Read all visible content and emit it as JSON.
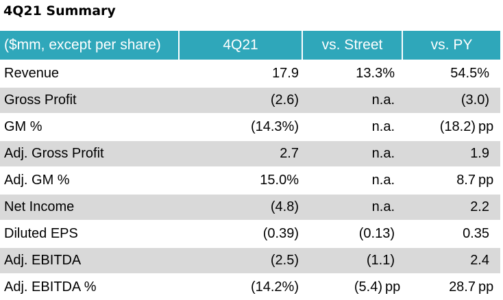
{
  "title": "4Q21 Summary",
  "header": {
    "label": "($mm, except per share)",
    "col1": "4Q21",
    "col2": "vs. Street",
    "col3": "vs. PY"
  },
  "rows": [
    {
      "label": "Revenue",
      "c1": "17.9",
      "c2": "13.3%",
      "c2_unit": "",
      "c3": "54.5%",
      "c3_unit": ""
    },
    {
      "label": "Gross Profit",
      "c1": "(2.6)",
      "c2": "n.a.",
      "c2_unit": "",
      "c3": "(3.0)",
      "c3_unit": ""
    },
    {
      "label": "GM %",
      "c1": "(14.3%)",
      "c2": "n.a.",
      "c2_unit": "",
      "c3": "(18.2)",
      "c3_unit": "pp"
    },
    {
      "label": "Adj. Gross Profit",
      "c1": "2.7",
      "c2": "n.a.",
      "c2_unit": "",
      "c3": "1.9",
      "c3_unit": ""
    },
    {
      "label": "Adj. GM %",
      "c1": "15.0%",
      "c2": "n.a.",
      "c2_unit": "",
      "c3": "8.7",
      "c3_unit": "pp"
    },
    {
      "label": "Net Income",
      "c1": "(4.8)",
      "c2": "n.a.",
      "c2_unit": "",
      "c3": "2.2",
      "c3_unit": ""
    },
    {
      "label": "Diluted EPS",
      "c1": "(0.39)",
      "c2": "(0.13)",
      "c2_unit": "",
      "c3": "0.35",
      "c3_unit": ""
    },
    {
      "label": "Adj. EBITDA",
      "c1": "(2.5)",
      "c2": "(1.1)",
      "c2_unit": "",
      "c3": "2.4",
      "c3_unit": ""
    },
    {
      "label": "Adj. EBITDA %",
      "c1": "(14.2%)",
      "c2": "(5.4)",
      "c2_unit": "pp",
      "c3": "28.7",
      "c3_unit": "pp"
    }
  ],
  "colors": {
    "header_bg": "#2fa7ba",
    "row_shade": "#d9d9d9"
  }
}
